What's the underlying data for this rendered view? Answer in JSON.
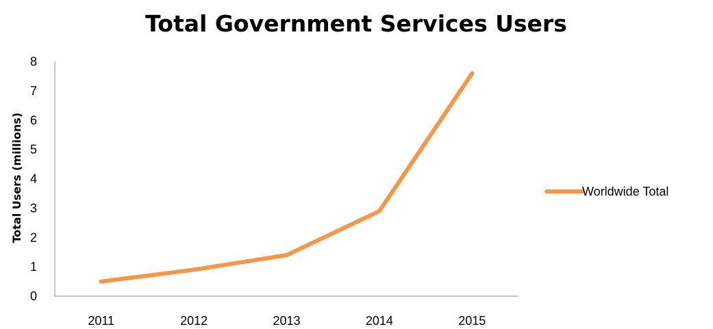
{
  "chart_data": {
    "type": "line",
    "title": "Total Government Services Users",
    "xlabel": "",
    "ylabel": "Total Users (millions)",
    "categories": [
      "2011",
      "2012",
      "2013",
      "2014",
      "2015"
    ],
    "series": [
      {
        "name": "Worldwide Total",
        "color": "#F79646",
        "values": [
          0.5,
          0.9,
          1.4,
          2.9,
          7.6
        ]
      }
    ],
    "ylim": [
      0,
      8
    ],
    "yticks": [
      "0",
      "1",
      "2",
      "3",
      "4",
      "5",
      "6",
      "7",
      "8"
    ],
    "grid": false,
    "legend": "right"
  }
}
